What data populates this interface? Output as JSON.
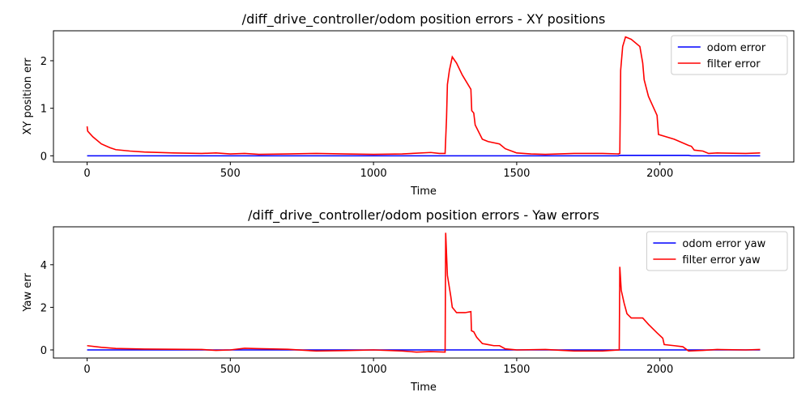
{
  "chart_data": [
    {
      "type": "line",
      "title": "/diff_drive_controller/odom position errors - XY positions",
      "x_label": "Time",
      "y_label": "XY position err",
      "x": [
        0,
        2,
        20,
        50,
        80,
        100,
        150,
        200,
        300,
        400,
        450,
        500,
        550,
        600,
        700,
        800,
        900,
        1000,
        1100,
        1200,
        1230,
        1250,
        1255,
        1258,
        1265,
        1275,
        1290,
        1310,
        1340,
        1343,
        1350,
        1355,
        1380,
        1400,
        1440,
        1460,
        1500,
        1550,
        1600,
        1700,
        1800,
        1855,
        1860,
        1863,
        1870,
        1880,
        1900,
        1930,
        1940,
        1945,
        1960,
        1990,
        1995,
        2050,
        2100,
        2110,
        2120,
        2150,
        2170,
        2200,
        2300,
        2350
      ],
      "series": [
        {
          "name": "odom error",
          "color": "#0000ff",
          "values": [
            0,
            0,
            0,
            0,
            0,
            0,
            0,
            0,
            0,
            0,
            0,
            0,
            0,
            0,
            0,
            0,
            0,
            0,
            0,
            0,
            0,
            0,
            0,
            0,
            0,
            0,
            0,
            0,
            0,
            0,
            0,
            0,
            0,
            0,
            0,
            0,
            0,
            0,
            0,
            0,
            0,
            0,
            0.01,
            0.01,
            0.01,
            0.01,
            0.01,
            0.01,
            0.01,
            0.01,
            0.01,
            0.01,
            0.01,
            0.01,
            0.01,
            0,
            0,
            0,
            0,
            0,
            0,
            0
          ]
        },
        {
          "name": "filter error",
          "color": "#ff0000",
          "values": [
            0.62,
            0.52,
            0.4,
            0.25,
            0.17,
            0.13,
            0.1,
            0.08,
            0.06,
            0.05,
            0.06,
            0.04,
            0.05,
            0.03,
            0.04,
            0.05,
            0.04,
            0.03,
            0.04,
            0.07,
            0.05,
            0.05,
            0.8,
            1.5,
            1.8,
            2.08,
            1.95,
            1.7,
            1.4,
            0.95,
            0.9,
            0.65,
            0.35,
            0.3,
            0.25,
            0.15,
            0.06,
            0.04,
            0.03,
            0.05,
            0.05,
            0.04,
            0.05,
            1.8,
            2.3,
            2.5,
            2.45,
            2.3,
            1.95,
            1.6,
            1.25,
            0.85,
            0.45,
            0.35,
            0.22,
            0.2,
            0.12,
            0.1,
            0.05,
            0.06,
            0.05,
            0.06
          ]
        }
      ],
      "xlim": [
        -117.5,
        2467.5
      ],
      "xticks": [
        0,
        500,
        1000,
        1500,
        2000
      ],
      "ylim": [
        -0.13,
        2.63
      ],
      "yticks": [
        0,
        1,
        2
      ],
      "legend": "upper-right"
    },
    {
      "type": "line",
      "title": "/diff_drive_controller/odom position errors - Yaw errors",
      "x_label": "Time",
      "y_label": "Yaw err",
      "x": [
        0,
        50,
        100,
        200,
        300,
        400,
        450,
        500,
        550,
        600,
        700,
        800,
        900,
        1000,
        1100,
        1150,
        1200,
        1250,
        1252,
        1258,
        1270,
        1275,
        1290,
        1320,
        1340,
        1342,
        1350,
        1360,
        1380,
        1400,
        1420,
        1440,
        1460,
        1500,
        1600,
        1700,
        1800,
        1858,
        1860,
        1865,
        1875,
        1885,
        1900,
        1940,
        1960,
        1990,
        2010,
        2015,
        2050,
        2080,
        2100,
        2150,
        2200,
        2300,
        2350
      ],
      "series": [
        {
          "name": "odom error yaw",
          "color": "#0000ff",
          "values": [
            0,
            0,
            0,
            0,
            0,
            0,
            0,
            0,
            0,
            0,
            0,
            0,
            0,
            0,
            0,
            0,
            0,
            0,
            0,
            0,
            0,
            0,
            0,
            0,
            0,
            0,
            0,
            0,
            0,
            0,
            0,
            0,
            0,
            0,
            0,
            0,
            0,
            0,
            0,
            0,
            0,
            0,
            0,
            0,
            0,
            0,
            0,
            0,
            0,
            0,
            0,
            0,
            0,
            0,
            0
          ]
        },
        {
          "name": "filter error yaw",
          "color": "#ff0000",
          "values": [
            0.2,
            0.12,
            0.07,
            0.04,
            0.03,
            0.02,
            -0.02,
            0.0,
            0.08,
            0.06,
            0.03,
            -0.05,
            -0.03,
            0.0,
            -0.05,
            -0.1,
            -0.08,
            -0.1,
            5.5,
            3.5,
            2.5,
            2.0,
            1.75,
            1.75,
            1.8,
            0.9,
            0.85,
            0.6,
            0.3,
            0.25,
            0.2,
            0.2,
            0.05,
            0.0,
            0.02,
            -0.05,
            -0.05,
            0.0,
            3.9,
            2.8,
            2.2,
            1.7,
            1.5,
            1.5,
            1.2,
            0.8,
            0.55,
            0.25,
            0.2,
            0.15,
            -0.05,
            -0.02,
            0.02,
            0.0,
            0.02
          ]
        }
      ],
      "xlim": [
        -117.5,
        2467.5
      ],
      "xticks": [
        0,
        500,
        1000,
        1500,
        2000
      ],
      "ylim": [
        -0.38,
        5.78
      ],
      "yticks": [
        0,
        2,
        4
      ],
      "legend": "upper-right"
    }
  ]
}
